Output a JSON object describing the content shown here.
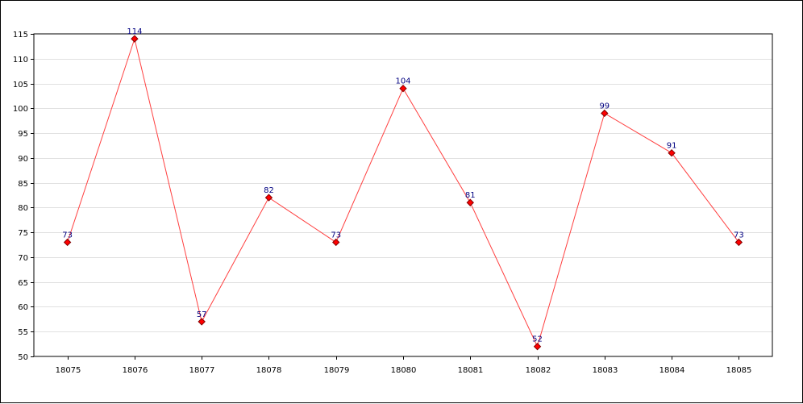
{
  "chart_data": {
    "type": "line",
    "title": "",
    "xlabel": "",
    "ylabel": "",
    "x": [
      "18075",
      "18076",
      "18077",
      "18078",
      "18079",
      "18080",
      "18081",
      "18082",
      "18083",
      "18084",
      "18085"
    ],
    "series": [
      {
        "values": [
          73,
          114,
          57,
          82,
          73,
          104,
          81,
          52,
          99,
          91,
          73
        ]
      }
    ],
    "ylim": [
      50,
      115
    ],
    "yticks": [
      50,
      55,
      60,
      65,
      70,
      75,
      80,
      85,
      90,
      95,
      100,
      105,
      110,
      115
    ],
    "grid": "horizontal",
    "legend": "none",
    "colors": {
      "line": "#ff4040",
      "marker": "#ff0000",
      "marker_border": "#800000",
      "data_label": "#000080",
      "grid": "#e0e0e0",
      "axis": "#000000"
    },
    "data_labels": true
  }
}
